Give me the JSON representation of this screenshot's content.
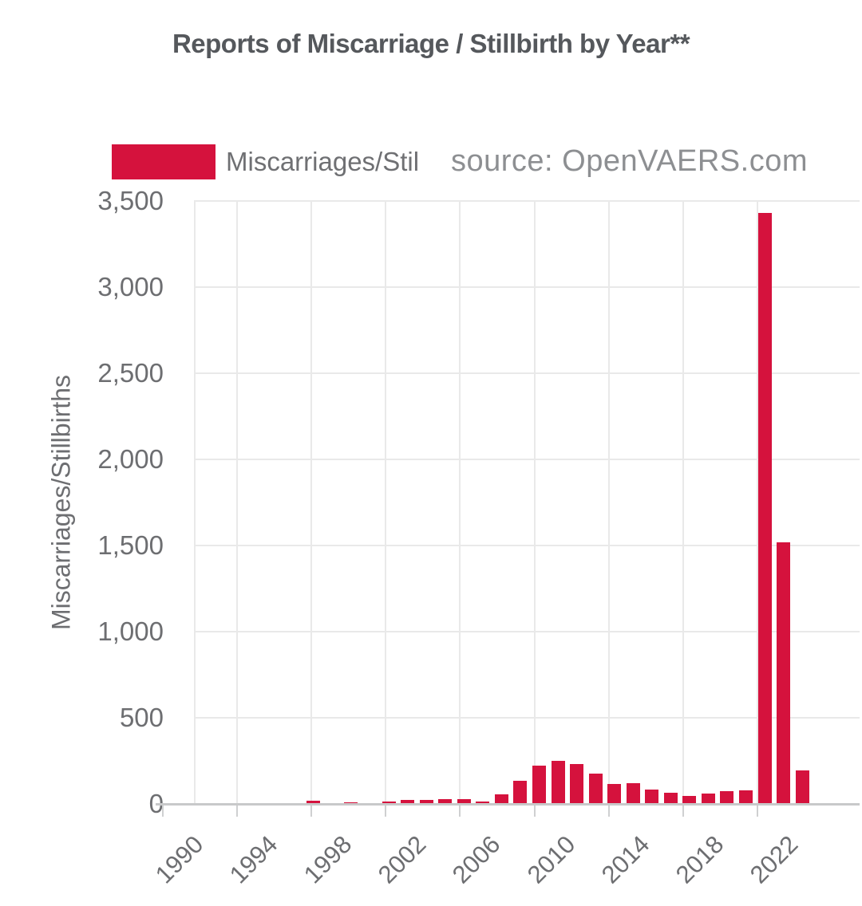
{
  "title": "Reports of Miscarriage / Stillbirth by Year**",
  "legend": {
    "label": "Miscarriages/Stil",
    "source": "source: OpenVAERS.com",
    "swatch_color": "#d5123d"
  },
  "chart_data": {
    "type": "bar",
    "title": "Reports of Miscarriage / Stillbirth by Year**",
    "series_name": "Miscarriages/Stillbirths",
    "xlabel": "",
    "ylabel": "Miscarriages/Stillbirths",
    "ylim": [
      0,
      3500
    ],
    "grid": true,
    "legend_position": "top-left",
    "bar_color": "#d5123d",
    "y_ticks": [
      0,
      500,
      1000,
      1500,
      2000,
      2500,
      3000,
      3500
    ],
    "y_tick_labels": [
      "0",
      "500",
      "1,000",
      "1,500",
      "2,000",
      "2,500",
      "3,000",
      "3,500"
    ],
    "x_tick_labels": [
      "1990",
      "1994",
      "1998",
      "2002",
      "2006",
      "2010",
      "2014",
      "2018",
      "2022"
    ],
    "categories": [
      1990,
      1991,
      1992,
      1993,
      1994,
      1995,
      1996,
      1997,
      1998,
      1999,
      2000,
      2001,
      2002,
      2003,
      2004,
      2005,
      2006,
      2007,
      2008,
      2009,
      2010,
      2011,
      2012,
      2013,
      2014,
      2015,
      2016,
      2017,
      2018,
      2019,
      2020,
      2021,
      2022,
      2023
    ],
    "values": [
      2,
      5,
      3,
      1,
      3,
      3,
      2,
      18,
      6,
      8,
      3,
      12,
      21,
      21,
      26,
      29,
      12,
      54,
      136,
      220,
      251,
      232,
      175,
      116,
      119,
      82,
      66,
      48,
      62,
      73,
      81,
      3430,
      1517,
      195
    ]
  },
  "colors": {
    "bar": "#d5123d",
    "title_text": "#55585c",
    "axis_text": "#6d6e71",
    "source_text": "#8d8f92",
    "gridline": "#e9e9e9",
    "baseline": "#c8c9ca"
  }
}
